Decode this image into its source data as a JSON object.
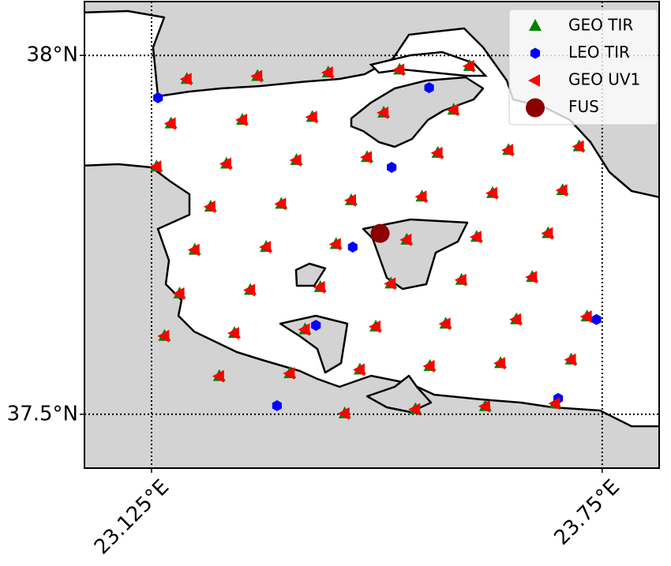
{
  "chart_data": {
    "type": "scatter",
    "xlim": [
      23.032,
      23.829
    ],
    "ylim": [
      37.425,
      38.075
    ],
    "xticks": [
      {
        "value": 23.125,
        "label": "23.125°E"
      },
      {
        "value": 23.75,
        "label": "23.75°E"
      }
    ],
    "yticks": [
      {
        "value": 37.5,
        "label": "37.5°N"
      },
      {
        "value": 38,
        "label": "38°N"
      }
    ],
    "grid": true,
    "legend": "upper right",
    "series": [
      {
        "name": "GEO TIR",
        "color": "#008000",
        "marker": "triangle-up",
        "x": [
          23.174,
          23.272,
          23.37,
          23.469,
          23.566,
          23.152,
          23.251,
          23.348,
          23.447,
          23.544,
          23.132,
          23.229,
          23.326,
          23.424,
          23.522,
          23.62,
          23.718,
          23.207,
          23.305,
          23.402,
          23.5,
          23.598,
          23.695,
          23.185,
          23.284,
          23.381,
          23.479,
          23.576,
          23.675,
          23.164,
          23.262,
          23.359,
          23.457,
          23.555,
          23.653,
          23.143,
          23.24,
          23.338,
          23.436,
          23.533,
          23.631,
          23.729,
          23.219,
          23.317,
          23.414,
          23.511,
          23.609,
          23.707,
          23.393,
          23.491,
          23.588,
          23.685
        ],
        "values": [
          37.967,
          37.971,
          37.976,
          37.98,
          37.985,
          37.905,
          37.91,
          37.914,
          37.92,
          37.924,
          37.845,
          37.849,
          37.854,
          37.858,
          37.864,
          37.868,
          37.873,
          37.789,
          37.793,
          37.798,
          37.803,
          37.808,
          37.812,
          37.729,
          37.733,
          37.737,
          37.743,
          37.747,
          37.752,
          37.668,
          37.673,
          37.677,
          37.682,
          37.687,
          37.691,
          37.609,
          37.613,
          37.618,
          37.622,
          37.626,
          37.632,
          37.636,
          37.553,
          37.557,
          37.562,
          37.567,
          37.571,
          37.576,
          37.501,
          37.507,
          37.511,
          37.515
        ]
      },
      {
        "name": "LEO TIR",
        "color": "#0000ff",
        "marker": "hexagon",
        "x": [
          23.134,
          23.51,
          23.458,
          23.404,
          23.353,
          23.742,
          23.299,
          23.689
        ],
        "values": [
          37.941,
          37.955,
          37.844,
          37.733,
          37.624,
          37.632,
          37.512,
          37.522
        ]
      },
      {
        "name": "GEO UV1",
        "color": "#ff0000",
        "marker": "triangle-left",
        "x": [
          23.174,
          23.272,
          23.37,
          23.469,
          23.566,
          23.152,
          23.251,
          23.348,
          23.447,
          23.544,
          23.132,
          23.229,
          23.326,
          23.424,
          23.522,
          23.62,
          23.718,
          23.207,
          23.305,
          23.402,
          23.5,
          23.598,
          23.695,
          23.185,
          23.284,
          23.381,
          23.479,
          23.576,
          23.675,
          23.164,
          23.262,
          23.359,
          23.457,
          23.555,
          23.653,
          23.143,
          23.24,
          23.338,
          23.436,
          23.533,
          23.631,
          23.729,
          23.219,
          23.317,
          23.414,
          23.511,
          23.609,
          23.707,
          23.393,
          23.491,
          23.588,
          23.685
        ],
        "values": [
          37.967,
          37.971,
          37.976,
          37.98,
          37.985,
          37.905,
          37.91,
          37.914,
          37.92,
          37.924,
          37.845,
          37.849,
          37.854,
          37.858,
          37.864,
          37.868,
          37.873,
          37.789,
          37.793,
          37.798,
          37.803,
          37.808,
          37.812,
          37.729,
          37.733,
          37.737,
          37.743,
          37.747,
          37.752,
          37.668,
          37.673,
          37.677,
          37.682,
          37.687,
          37.691,
          37.609,
          37.613,
          37.618,
          37.622,
          37.626,
          37.632,
          37.636,
          37.553,
          37.557,
          37.562,
          37.567,
          37.571,
          37.576,
          37.501,
          37.507,
          37.511,
          37.515
        ]
      },
      {
        "name": "FUS",
        "color": "#8b0000",
        "marker": "circle",
        "x": [
          23.442
        ],
        "values": [
          37.752
        ]
      }
    ]
  }
}
